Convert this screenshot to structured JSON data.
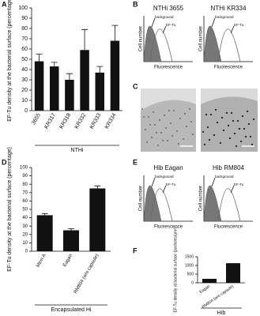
{
  "panel_labels": [
    "A",
    "B",
    "C",
    "D",
    "E",
    "F"
  ],
  "flow": [
    {
      "titles": [
        "NTHi 3655",
        "NTHi KR334"
      ],
      "y_label": "Cell number",
      "x_label": "Fluorescence",
      "annotations": [
        "background",
        "EF-Tu"
      ]
    },
    {
      "titles": [
        "Hib Eagan",
        "Hib RM804"
      ],
      "y_label": "Cell number",
      "x_label": "Fluorescence",
      "annotations": [
        "background",
        "EF-Tu"
      ]
    }
  ],
  "chart_data": [
    {
      "type": "bar",
      "y_label": "EF-Tu density at the bacterial surface (percentage)",
      "group_label": "NTHi",
      "categories": [
        "3655",
        "KR317",
        "KR318",
        "KR332",
        "KR333",
        "KR334"
      ],
      "values": [
        48,
        43,
        30,
        59,
        37,
        68
      ],
      "errors": [
        7,
        4,
        6,
        20,
        6,
        15
      ],
      "color": "#111111",
      "ylim": [
        0,
        100
      ],
      "yticks": [
        0,
        10,
        20,
        30,
        40,
        50,
        60,
        70,
        80,
        90,
        100
      ]
    },
    {
      "type": "bar",
      "y_label": "EF-Tu density at the bacterial surface (percentage)",
      "group_label": "Encapsulated Hi",
      "categories": [
        "Minn A",
        "Eagan",
        "RM804 (w/o capsule)"
      ],
      "values": [
        43,
        25,
        75
      ],
      "errors": [
        2,
        2,
        3
      ],
      "color": "#111111",
      "ylim": [
        0,
        100
      ],
      "yticks": [
        0,
        10,
        20,
        30,
        40,
        50,
        60,
        70,
        80,
        90,
        100
      ]
    },
    {
      "type": "bar",
      "y_label": "EF-Tu density at bacterial surface (particles/µm²)",
      "group_label": "Hib",
      "categories": [
        "Eagan",
        "RM804 (w/o capsule)"
      ],
      "values": [
        230,
        1130
      ],
      "color": "#111111",
      "ylim": [
        0,
        1500
      ],
      "yticks": [
        0,
        500,
        1000,
        1500
      ]
    }
  ]
}
